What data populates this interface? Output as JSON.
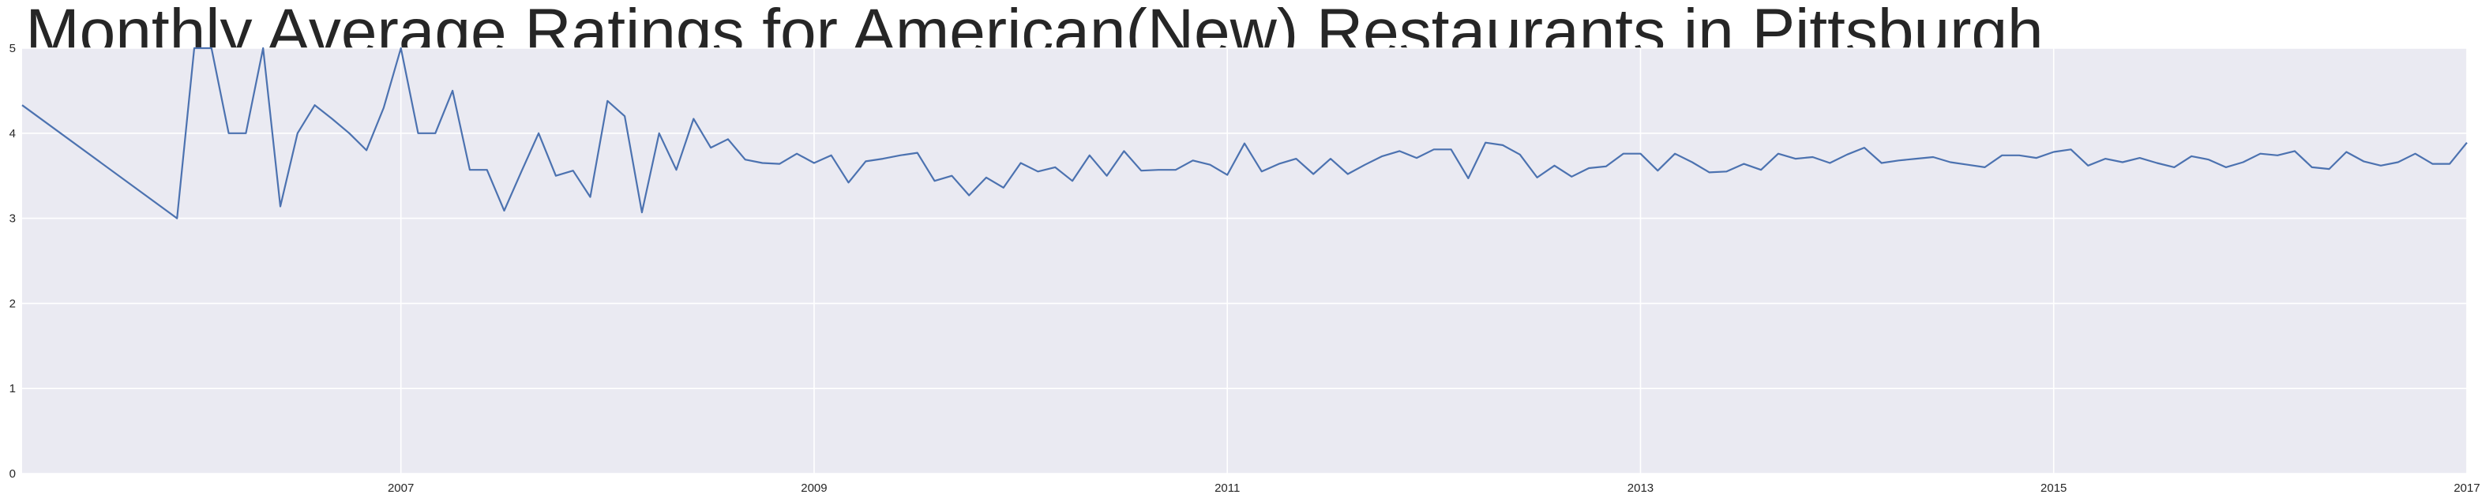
{
  "chart_data": {
    "type": "line",
    "title": "Monthly Average Ratings for American(New) Restaurants in Pittsburgh",
    "xlabel": "",
    "ylabel": "",
    "ylim": [
      0,
      5
    ],
    "xlim": [
      "2005-03",
      "2017-01"
    ],
    "grid": true,
    "x_ticks": [
      "2007",
      "2009",
      "2011",
      "2013",
      "2015",
      "2017"
    ],
    "y_ticks": [
      "0",
      "1",
      "2",
      "3",
      "4",
      "5"
    ],
    "colors": {
      "line": "#4c72b0",
      "plot_background": "#eaeaf2",
      "grid": "#ffffff",
      "text": "#262626"
    },
    "series": [
      {
        "x": [
          "2005-03",
          "2005-12",
          "2006-01",
          "2006-02",
          "2006-03",
          "2006-04",
          "2006-05",
          "2006-06",
          "2006-07",
          "2006-08",
          "2006-09",
          "2006-10",
          "2006-11",
          "2006-12",
          "2007-01",
          "2007-02",
          "2007-03",
          "2007-04",
          "2007-05",
          "2007-06",
          "2007-07",
          "2007-08",
          "2007-09",
          "2007-10",
          "2007-11",
          "2007-12",
          "2008-01",
          "2008-02",
          "2008-03",
          "2008-04",
          "2008-05",
          "2008-06",
          "2008-07",
          "2008-08",
          "2008-09",
          "2008-10",
          "2008-11",
          "2008-12",
          "2009-01",
          "2009-02",
          "2009-03",
          "2009-04",
          "2009-05",
          "2009-06",
          "2009-07",
          "2009-08",
          "2009-09",
          "2009-10",
          "2009-11",
          "2009-12",
          "2010-01",
          "2010-02",
          "2010-03",
          "2010-04",
          "2010-05",
          "2010-06",
          "2010-07",
          "2010-08",
          "2010-09",
          "2010-10",
          "2010-11",
          "2010-12",
          "2011-01",
          "2011-02",
          "2011-03",
          "2011-04",
          "2011-05",
          "2011-06",
          "2011-07",
          "2011-08",
          "2011-09",
          "2011-10",
          "2011-11",
          "2011-12",
          "2012-01",
          "2012-02",
          "2012-03",
          "2012-04",
          "2012-05",
          "2012-06",
          "2012-07",
          "2012-08",
          "2012-09",
          "2012-10",
          "2012-11",
          "2012-12",
          "2013-01",
          "2013-02",
          "2013-03",
          "2013-04",
          "2013-05",
          "2013-06",
          "2013-07",
          "2013-08",
          "2013-09",
          "2013-10",
          "2013-11",
          "2013-12",
          "2014-01",
          "2014-02",
          "2014-03",
          "2014-04",
          "2014-05",
          "2014-06",
          "2014-07",
          "2014-08",
          "2014-09",
          "2014-10",
          "2014-11",
          "2014-12",
          "2015-01",
          "2015-02",
          "2015-03",
          "2015-04",
          "2015-05",
          "2015-06",
          "2015-07",
          "2015-08",
          "2015-09",
          "2015-10",
          "2015-11",
          "2015-12",
          "2016-01",
          "2016-02",
          "2016-03",
          "2016-04",
          "2016-05",
          "2016-06",
          "2016-07",
          "2016-08",
          "2016-09",
          "2016-10",
          "2016-11",
          "2016-12",
          "2017-01"
        ],
        "values": [
          4.33,
          3.0,
          5.0,
          5.0,
          4.0,
          4.0,
          5.0,
          3.14,
          4.0,
          4.33,
          4.17,
          4.0,
          3.8,
          4.3,
          5.0,
          4.0,
          4.0,
          4.5,
          3.57,
          3.57,
          3.09,
          3.55,
          4.0,
          3.5,
          3.56,
          3.25,
          4.38,
          4.2,
          3.07,
          4.0,
          3.57,
          4.17,
          3.83,
          3.93,
          3.69,
          3.65,
          3.64,
          3.76,
          3.65,
          3.74,
          3.42,
          3.67,
          3.7,
          3.74,
          3.77,
          3.44,
          3.5,
          3.27,
          3.48,
          3.36,
          3.65,
          3.55,
          3.6,
          3.44,
          3.74,
          3.5,
          3.79,
          3.56,
          3.57,
          3.57,
          3.68,
          3.63,
          3.51,
          3.88,
          3.55,
          3.64,
          3.7,
          3.52,
          3.7,
          3.52,
          3.63,
          3.73,
          3.79,
          3.71,
          3.81,
          3.81,
          3.47,
          3.89,
          3.86,
          3.75,
          3.48,
          3.62,
          3.49,
          3.59,
          3.61,
          3.76,
          3.76,
          3.56,
          3.76,
          3.66,
          3.54,
          3.55,
          3.64,
          3.57,
          3.76,
          3.7,
          3.72,
          3.65,
          3.75,
          3.83,
          3.65,
          3.68,
          3.7,
          3.72,
          3.66,
          3.63,
          3.6,
          3.74,
          3.74,
          3.71,
          3.78,
          3.81,
          3.62,
          3.7,
          3.66,
          3.71,
          3.65,
          3.6,
          3.73,
          3.69,
          3.6,
          3.66,
          3.76,
          3.74,
          3.79,
          3.6,
          3.58,
          3.78,
          3.67,
          3.62,
          3.66,
          3.76,
          3.64,
          3.64,
          3.89
        ]
      }
    ]
  }
}
